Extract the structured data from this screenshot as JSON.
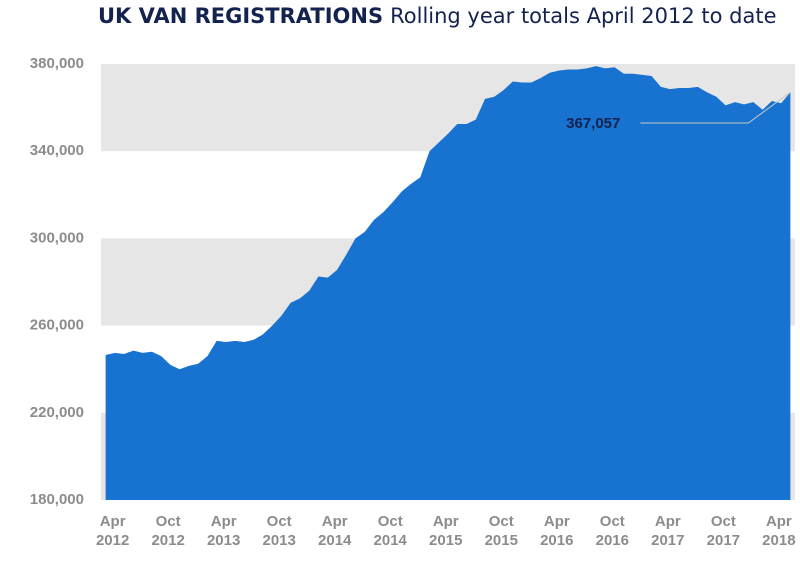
{
  "chart_data": {
    "type": "area",
    "title": "UK VAN REGISTRATIONS",
    "subtitle": "Rolling year totals April 2012 to date",
    "categories": [
      "Apr 2012",
      null,
      null,
      null,
      null,
      null,
      "Oct 2012",
      null,
      null,
      null,
      null,
      null,
      "Apr 2013",
      null,
      null,
      null,
      null,
      null,
      "Oct 2013",
      null,
      null,
      null,
      null,
      null,
      "Apr 2014",
      null,
      null,
      null,
      null,
      null,
      "Oct 2014",
      null,
      null,
      null,
      null,
      null,
      "Apr 2015",
      null,
      null,
      null,
      null,
      null,
      "Oct 2015",
      null,
      null,
      null,
      null,
      null,
      "Apr 2016",
      null,
      null,
      null,
      null,
      null,
      "Oct 2016",
      null,
      null,
      null,
      null,
      null,
      "Apr 2017",
      null,
      null,
      null,
      null,
      null,
      "Oct 2017",
      null,
      null,
      null,
      null,
      null,
      "Apr 2018",
      null,
      null
    ],
    "values": [
      246500,
      247500,
      247000,
      248500,
      247500,
      248000,
      246000,
      242000,
      240000,
      241500,
      242500,
      246000,
      253000,
      252500,
      253000,
      252500,
      253500,
      256000,
      260000,
      264500,
      270500,
      272500,
      276000,
      282500,
      282000,
      285500,
      292500,
      300000,
      303000,
      308500,
      312000,
      316500,
      321500,
      325000,
      328000,
      340000,
      344000,
      348000,
      352500,
      352500,
      354500,
      364000,
      365000,
      368000,
      372000,
      371500,
      371500,
      373500,
      376000,
      377000,
      377500,
      377500,
      378000,
      379000,
      378000,
      378500,
      375500,
      375500,
      375000,
      374500,
      369500,
      368500,
      369000,
      369000,
      369500,
      367000,
      365000,
      361000,
      362500,
      361500,
      362500,
      359000,
      363000,
      362000,
      367057
    ],
    "value_labels": [
      null,
      null,
      null,
      null,
      null,
      null,
      null,
      null,
      null,
      null,
      null,
      null,
      null,
      null,
      null,
      null,
      null,
      null,
      null,
      null,
      null,
      null,
      null,
      null,
      null,
      null,
      null,
      null,
      null,
      null,
      null,
      null,
      null,
      null,
      null,
      null,
      null,
      null,
      null,
      null,
      null,
      null,
      null,
      null,
      null,
      null,
      null,
      null,
      null,
      null,
      null,
      null,
      null,
      null,
      null,
      null,
      null,
      null,
      null,
      null,
      null,
      null,
      null,
      null,
      null,
      null,
      null,
      null,
      null,
      null,
      null,
      null,
      null,
      null,
      "367,057"
    ],
    "color": "#1872cf",
    "ylim": [
      180000,
      380000
    ],
    "yticks": [
      {
        "value": 180000,
        "label": "180,000"
      },
      {
        "value": 220000,
        "label": "220,000"
      },
      {
        "value": 260000,
        "label": "260,000"
      },
      {
        "value": 300000,
        "label": "300,000"
      },
      {
        "value": 340000,
        "label": "340,000"
      },
      {
        "value": 380000,
        "label": "380,000"
      }
    ],
    "grid_bands": true
  }
}
